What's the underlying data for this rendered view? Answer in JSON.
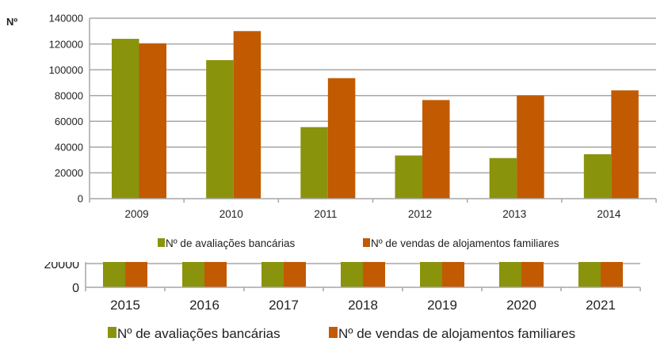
{
  "colors": {
    "green": "#8a930c",
    "orange": "#c25a02",
    "grid": "#a6a6a6"
  },
  "chart_data": [
    {
      "type": "bar",
      "ylabel": "Nº",
      "ylim": [
        0,
        140000
      ],
      "yticks": [
        0,
        20000,
        40000,
        60000,
        80000,
        100000,
        120000,
        140000
      ],
      "grid": true,
      "legend_position": "bottom",
      "categories": [
        "2009",
        "2010",
        "2011",
        "2012",
        "2013",
        "2014"
      ],
      "series": [
        {
          "name": "Nº de avaliações bancárias",
          "values": [
            124000,
            107500,
            55500,
            33500,
            31500,
            34500
          ]
        },
        {
          "name": "Nº de vendas de alojamentos familiares",
          "values": [
            120500,
            130000,
            93500,
            76500,
            80000,
            84000
          ]
        }
      ]
    },
    {
      "type": "bar",
      "note_visible_range": "cropped",
      "ylim": [
        0,
        20000
      ],
      "yticks": [
        0,
        20000
      ],
      "grid": true,
      "legend_position": "bottom",
      "categories": [
        "2015",
        "2016",
        "2017",
        "2018",
        "2019",
        "2020",
        "2021"
      ],
      "series": [
        {
          "name": "Nº de avaliações bancárias",
          "values": [
            null,
            null,
            null,
            null,
            null,
            null,
            null
          ]
        },
        {
          "name": "Nº de vendas de alojamentos familiares",
          "values": [
            null,
            null,
            null,
            null,
            null,
            null,
            null
          ]
        }
      ]
    }
  ]
}
